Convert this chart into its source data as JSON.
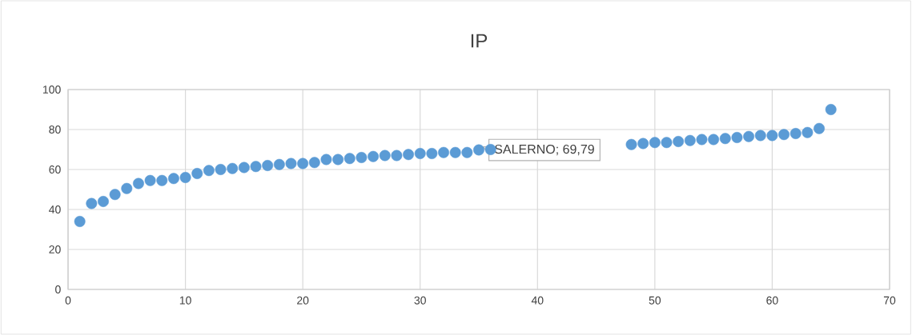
{
  "chart_data": {
    "type": "scatter",
    "title": "IP",
    "x": [
      1,
      2,
      3,
      4,
      5,
      6,
      7,
      8,
      9,
      10,
      11,
      12,
      13,
      14,
      15,
      16,
      17,
      18,
      19,
      20,
      21,
      22,
      23,
      24,
      25,
      26,
      27,
      28,
      29,
      30,
      31,
      32,
      33,
      34,
      35,
      36,
      37,
      38,
      39,
      40,
      41,
      42,
      43,
      44,
      45,
      46,
      47,
      48,
      49,
      50,
      51,
      52,
      53,
      54,
      55,
      56,
      57,
      58,
      59,
      60,
      61,
      62,
      63,
      64,
      65
    ],
    "series": [
      {
        "color": "#5b9bd5",
        "values": [
          34,
          43,
          44,
          47.5,
          50.5,
          53,
          54.5,
          54.5,
          55.5,
          56,
          58,
          59.5,
          60,
          60.5,
          61,
          61.5,
          62,
          62.5,
          63,
          63,
          63.5,
          65,
          65,
          65.5,
          66,
          66.5,
          67,
          67,
          67.5,
          68,
          68,
          68.5,
          68.5,
          68.5,
          69.79,
          70,
          null,
          null,
          null,
          null,
          null,
          null,
          null,
          null,
          null,
          null,
          null,
          72.5,
          73,
          73.5,
          73.5,
          74,
          74.5,
          75,
          75,
          75.5,
          76,
          76.5,
          77,
          77,
          77.5,
          78,
          78.5,
          80.5,
          90
        ]
      }
    ],
    "annotations": [
      {
        "text": "SALERNO; 69,79",
        "x": 35,
        "y": 69.79
      }
    ],
    "xlim": [
      0,
      70
    ],
    "xticks": [
      0,
      10,
      20,
      30,
      40,
      50,
      60,
      70
    ],
    "ylim": [
      0,
      100
    ],
    "yticks": [
      0,
      20,
      40,
      60,
      80,
      100
    ],
    "grid": true,
    "marker": "circle"
  }
}
